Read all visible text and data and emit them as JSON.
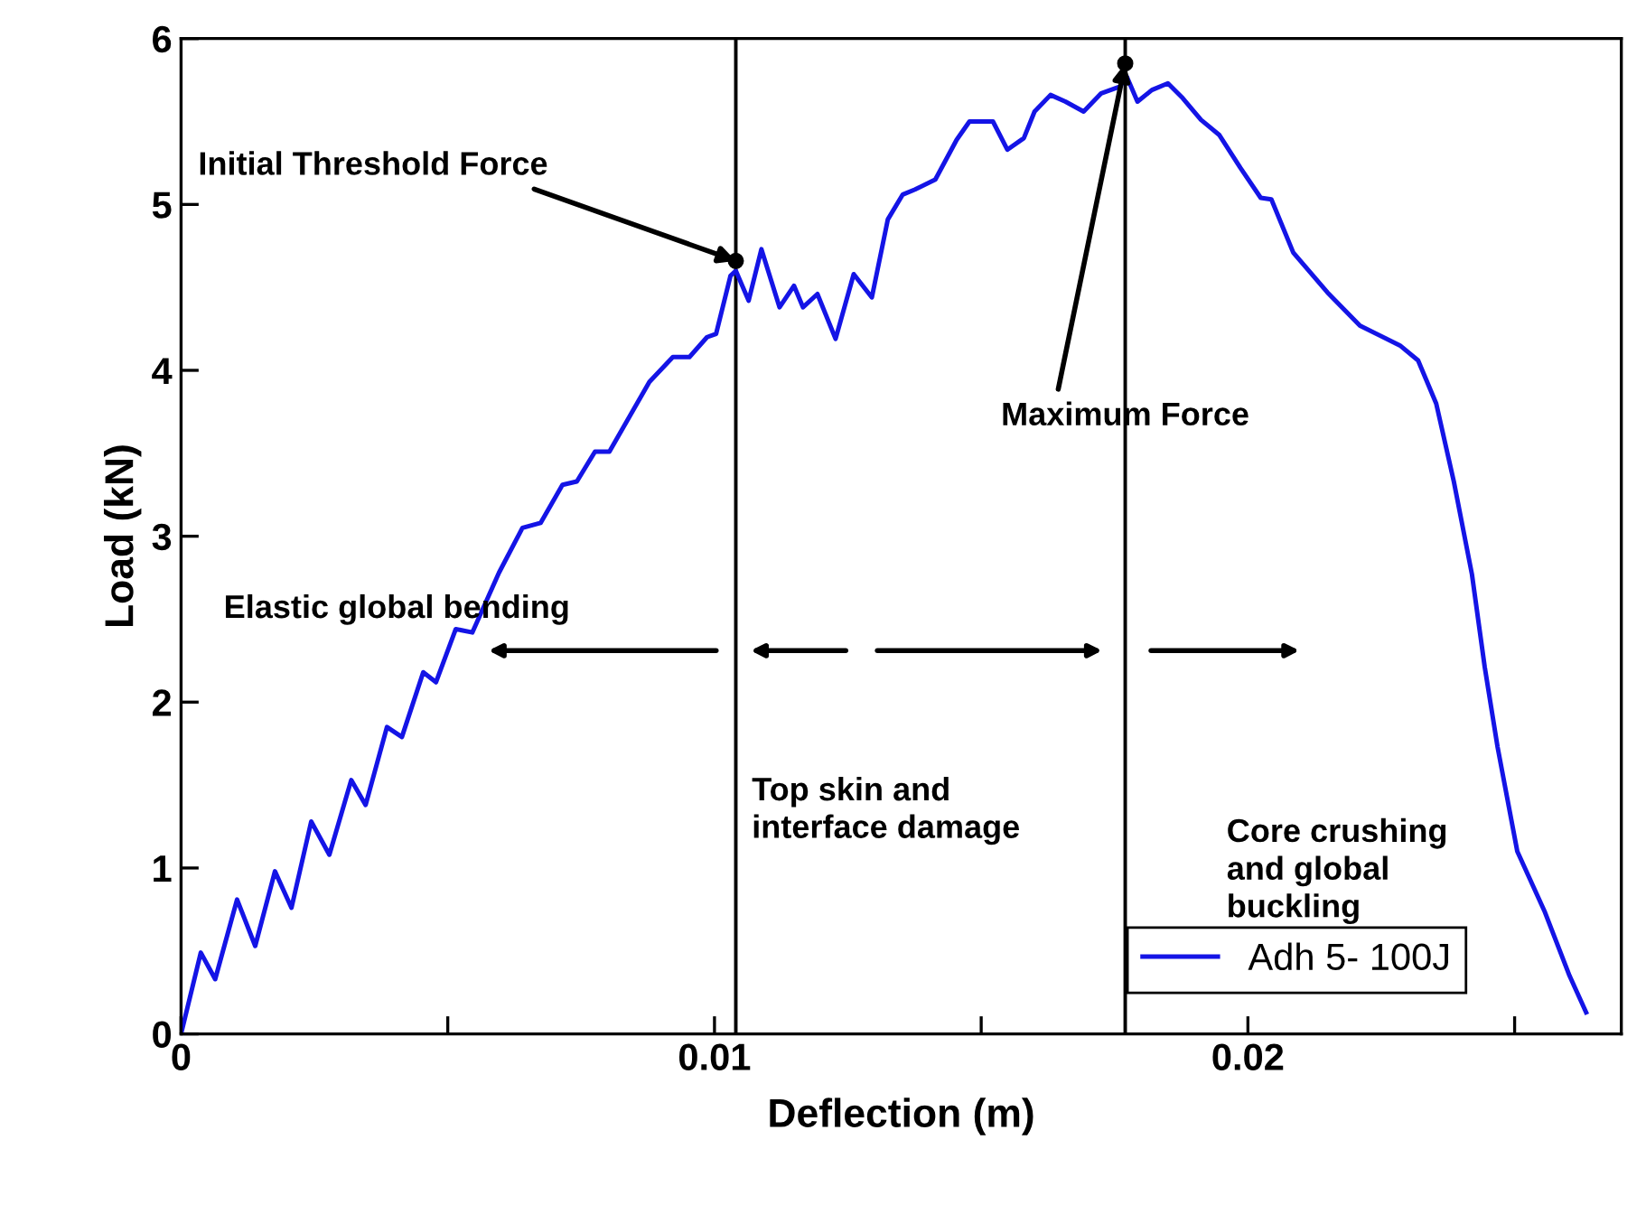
{
  "chart_data": {
    "type": "line",
    "xlabel": "Deflection (m)",
    "ylabel": "Load (kN)",
    "xlim": [
      0,
      0.027
    ],
    "ylim": [
      0,
      6
    ],
    "xticks": [
      0,
      {
        "value": 0.005,
        "label": null
      },
      0.01,
      {
        "value": 0.015,
        "label": null
      },
      0.02,
      {
        "value": 0.025,
        "label": null
      }
    ],
    "yticks": [
      0,
      1,
      2,
      3,
      4,
      5,
      6
    ],
    "grid": false,
    "legend": "bottom right",
    "series": [
      {
        "name": "Adh 5- 100J",
        "color": "#1414e6",
        "marker": "none",
        "x": [
          0,
          0.00037,
          0.00064,
          0.00105,
          0.00139,
          0.00176,
          0.00207,
          0.00244,
          0.00278,
          0.00319,
          0.00346,
          0.00386,
          0.00414,
          0.00454,
          0.00478,
          0.00515,
          0.00546,
          0.00596,
          0.0064,
          0.00674,
          0.00715,
          0.00742,
          0.00776,
          0.00803,
          0.00878,
          0.00922,
          0.00953,
          0.00986,
          0.01003,
          0.0103,
          0.0104,
          0.01064,
          0.01088,
          0.01122,
          0.01149,
          0.01166,
          0.01193,
          0.01227,
          0.01261,
          0.01295,
          0.01325,
          0.01353,
          0.01376,
          0.01414,
          0.01454,
          0.01478,
          0.01522,
          0.01549,
          0.0158,
          0.016,
          0.0163,
          0.01658,
          0.01692,
          0.01725,
          0.0176,
          0.01773,
          0.01793,
          0.0182,
          0.0185,
          0.01878,
          0.01912,
          0.01946,
          0.01986,
          0.02024,
          0.02044,
          0.02085,
          0.02149,
          0.0221,
          0.02285,
          0.02319,
          0.02353,
          0.02386,
          0.0242,
          0.02444,
          0.02468,
          0.02505,
          0.02556,
          0.02603,
          0.02634
        ],
        "values": [
          0,
          0.49,
          0.33,
          0.81,
          0.53,
          0.98,
          0.76,
          1.28,
          1.08,
          1.53,
          1.38,
          1.85,
          1.79,
          2.18,
          2.12,
          2.44,
          2.42,
          2.78,
          3.05,
          3.08,
          3.31,
          3.33,
          3.51,
          3.51,
          3.93,
          4.08,
          4.08,
          4.2,
          4.22,
          4.57,
          4.6,
          4.42,
          4.73,
          4.38,
          4.51,
          4.38,
          4.46,
          4.19,
          4.58,
          4.44,
          4.91,
          5.06,
          5.09,
          5.15,
          5.39,
          5.5,
          5.5,
          5.33,
          5.4,
          5.56,
          5.66,
          5.62,
          5.56,
          5.67,
          5.71,
          5.77,
          5.62,
          5.69,
          5.73,
          5.64,
          5.51,
          5.42,
          5.22,
          5.04,
          5.03,
          4.71,
          4.47,
          4.27,
          4.15,
          4.06,
          3.8,
          3.33,
          2.77,
          2.21,
          1.73,
          1.1,
          0.74,
          0.35,
          0.13
        ]
      },
      {
        "color": "#000000",
        "type": "scatter",
        "marker": "circle",
        "x": [
          0.0104,
          0.0177
        ],
        "values": [
          4.66,
          5.85
        ]
      }
    ],
    "ref_lines": [
      {
        "axis": "x",
        "value": 0.0104,
        "color": "#000000"
      },
      {
        "axis": "x",
        "value": 0.0177,
        "color": "#000000"
      }
    ],
    "annotations": [
      {
        "text": "Initial Threshold Force",
        "x": 0.0104,
        "y": 4.66
      },
      {
        "text": "Maximum Force",
        "x": 0.0177,
        "y": 5.85
      },
      "Elastic global bending",
      "Top skin and\ninterface damage",
      "Core crushing\nand global\nbuckling"
    ]
  }
}
